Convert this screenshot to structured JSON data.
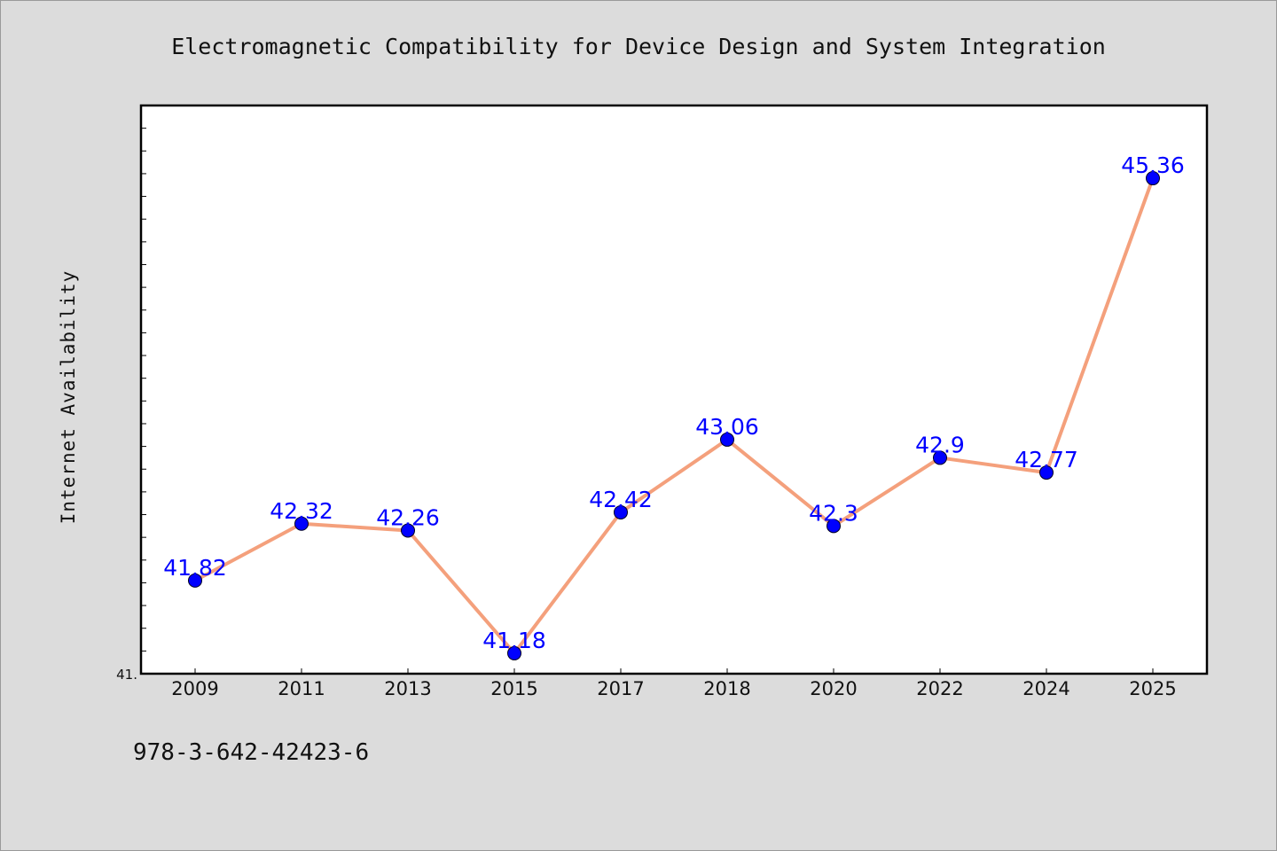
{
  "footer": {
    "isbn": "978-3-642-42423-6"
  },
  "chart_data": {
    "type": "line",
    "title": "Electromagnetic Compatibility for Device Design and System Integration",
    "xlabel": "",
    "ylabel": "Internet Availability",
    "categories": [
      "2009",
      "2011",
      "2013",
      "2015",
      "2017",
      "2018",
      "2020",
      "2022",
      "2024",
      "2025"
    ],
    "series": [
      {
        "values": [
          41.82,
          42.32,
          42.26,
          41.18,
          42.42,
          43.06,
          42.3,
          42.9,
          42.77,
          45.36
        ]
      }
    ],
    "data_labels": [
      "41.82",
      "42.32",
      "42.26",
      "41.18",
      "42.42",
      "43.06",
      "42.3",
      "42.9",
      "42.77",
      "45.36"
    ],
    "y_tick_labels": [
      "41."
    ],
    "ylim": [
      41.0,
      46.0
    ],
    "grid": false,
    "legend": "none",
    "colors": {
      "line": "#f4a07c",
      "marker": "#0000ff",
      "label": "#0000ff",
      "background": "#dcdcdc",
      "plot": "#ffffff"
    }
  }
}
